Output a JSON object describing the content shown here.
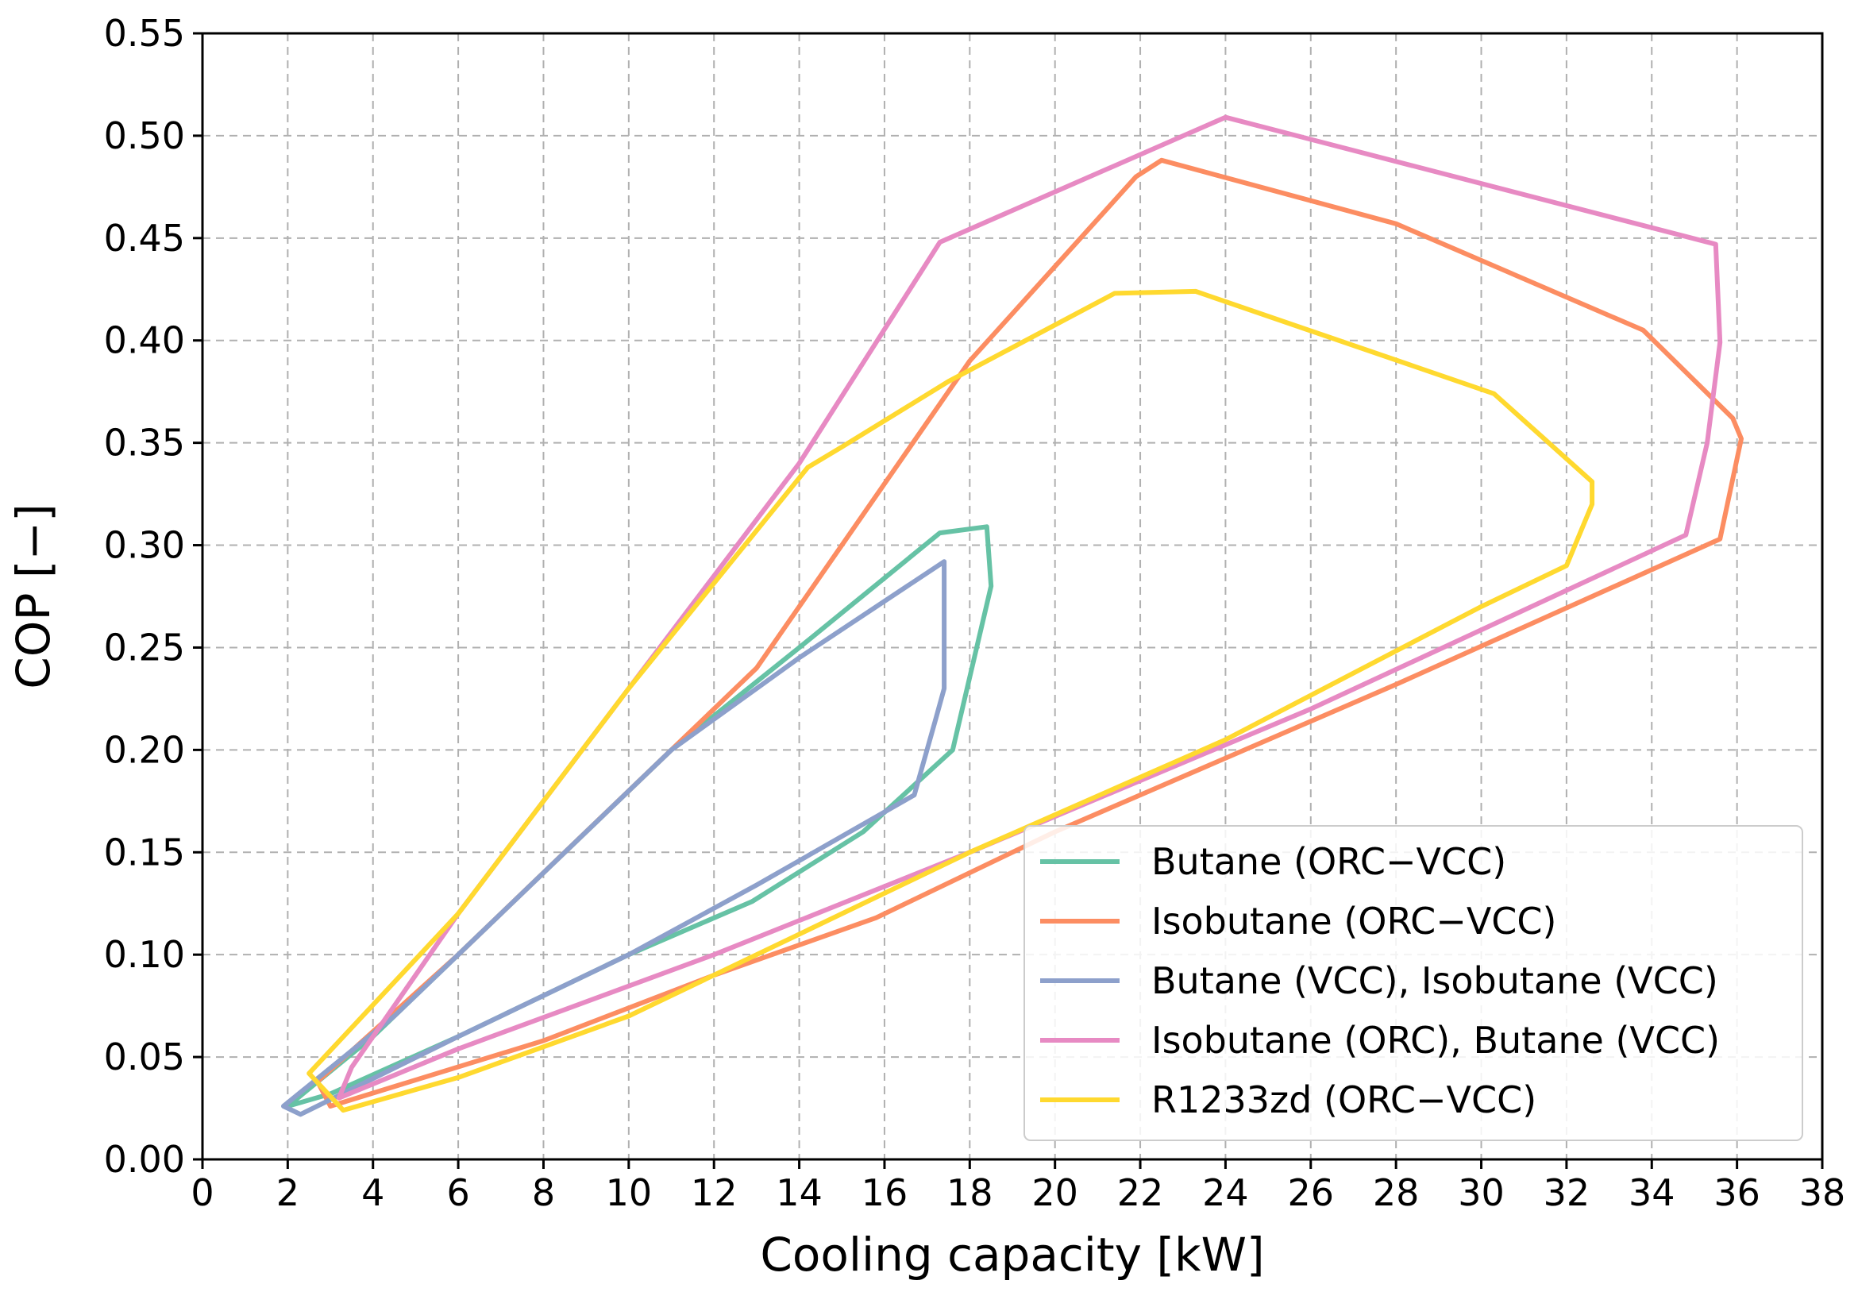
{
  "chart_data": {
    "type": "line",
    "title": "",
    "xlabel": "Cooling capacity [kW]",
    "ylabel": "COP [−]",
    "xlim": [
      0,
      38
    ],
    "ylim": [
      0,
      0.55
    ],
    "grid": true,
    "legend_position": "bottom-right",
    "x_ticks": [
      0,
      2,
      4,
      6,
      8,
      10,
      12,
      14,
      16,
      18,
      20,
      22,
      24,
      26,
      28,
      30,
      32,
      34,
      36,
      38
    ],
    "x_tick_labels": [
      "0",
      "2",
      "4",
      "6",
      "8",
      "10",
      "12",
      "14",
      "16",
      "18",
      "20",
      "22",
      "24",
      "26",
      "28",
      "30",
      "32",
      "34",
      "36",
      "38"
    ],
    "y_ticks": [
      0,
      0.05,
      0.1,
      0.15,
      0.2,
      0.25,
      0.3,
      0.35,
      0.4,
      0.45,
      0.5,
      0.55
    ],
    "y_tick_labels": [
      "0.00",
      "0.05",
      "0.10",
      "0.15",
      "0.20",
      "0.25",
      "0.30",
      "0.35",
      "0.40",
      "0.45",
      "0.50",
      "0.55"
    ],
    "series": [
      {
        "name": "Butane (ORC−VCC)",
        "color": "#66c2a5",
        "x": [
          2.0,
          4.0,
          8.0,
          11.0,
          14.0,
          17.3,
          18.4,
          18.5,
          17.6,
          15.5,
          12.9,
          10.0,
          6.0,
          3.0,
          2.0
        ],
        "y": [
          0.026,
          0.06,
          0.14,
          0.2,
          0.25,
          0.306,
          0.309,
          0.28,
          0.2,
          0.16,
          0.126,
          0.1,
          0.06,
          0.032,
          0.026
        ]
      },
      {
        "name": "Isobutane (ORC−VCC)",
        "color": "#fc8d62",
        "x": [
          2.7,
          6.0,
          10.0,
          13.0,
          18.0,
          21.9,
          22.5,
          28.0,
          33.8,
          35.9,
          36.1,
          35.6,
          28.0,
          20.0,
          15.8,
          12.0,
          8.0,
          3.0,
          2.7
        ],
        "y": [
          0.038,
          0.1,
          0.18,
          0.24,
          0.39,
          0.48,
          0.488,
          0.457,
          0.405,
          0.362,
          0.352,
          0.303,
          0.232,
          0.16,
          0.118,
          0.09,
          0.058,
          0.026,
          0.038
        ]
      },
      {
        "name": "Butane (VCC), Isobutane (VCC)",
        "color": "#8da0cb",
        "x": [
          1.9,
          4.5,
          8.0,
          11.0,
          14.0,
          17.4,
          17.4,
          17.4,
          17.2,
          16.7,
          13.0,
          10.0,
          6.0,
          2.3,
          1.9
        ],
        "y": [
          0.026,
          0.07,
          0.14,
          0.2,
          0.245,
          0.292,
          0.26,
          0.23,
          0.215,
          0.178,
          0.134,
          0.1,
          0.06,
          0.022,
          0.026
        ]
      },
      {
        "name": "Isobutane (ORC), Butane (VCC)",
        "color": "#e78ac3",
        "x": [
          3.3,
          3.5,
          6.0,
          10.0,
          14.0,
          17.3,
          24.0,
          35.5,
          35.6,
          35.3,
          34.8,
          26.0,
          18.0,
          12.0,
          6.0,
          3.2,
          3.3
        ],
        "y": [
          0.035,
          0.045,
          0.12,
          0.23,
          0.34,
          0.448,
          0.509,
          0.447,
          0.399,
          0.35,
          0.305,
          0.22,
          0.15,
          0.1,
          0.054,
          0.03,
          0.035
        ]
      },
      {
        "name": "R1233zd (ORC−VCC)",
        "color": "#ffd92f",
        "x": [
          2.5,
          6.0,
          10.0,
          14.2,
          15.0,
          17.5,
          21.4,
          23.3,
          30.3,
          32.6,
          32.6,
          32.0,
          30.0,
          24.0,
          18.0,
          14.0,
          10.0,
          6.0,
          3.3,
          2.5
        ],
        "y": [
          0.042,
          0.12,
          0.23,
          0.338,
          0.348,
          0.38,
          0.423,
          0.424,
          0.374,
          0.331,
          0.32,
          0.29,
          0.27,
          0.205,
          0.15,
          0.11,
          0.07,
          0.04,
          0.024,
          0.042
        ]
      }
    ]
  }
}
